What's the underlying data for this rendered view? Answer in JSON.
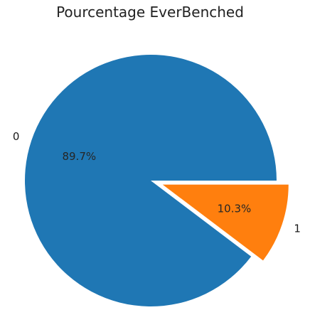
{
  "chart_data": {
    "type": "pie",
    "title": "Pourcentage EverBenched",
    "categories": [
      "0",
      "1"
    ],
    "values": [
      89.7,
      10.3
    ],
    "percent_labels": [
      "89.7%",
      "10.3%"
    ],
    "exploded": [
      false,
      true
    ],
    "colors": [
      "#1f77b4",
      "#ff7f0e"
    ]
  }
}
